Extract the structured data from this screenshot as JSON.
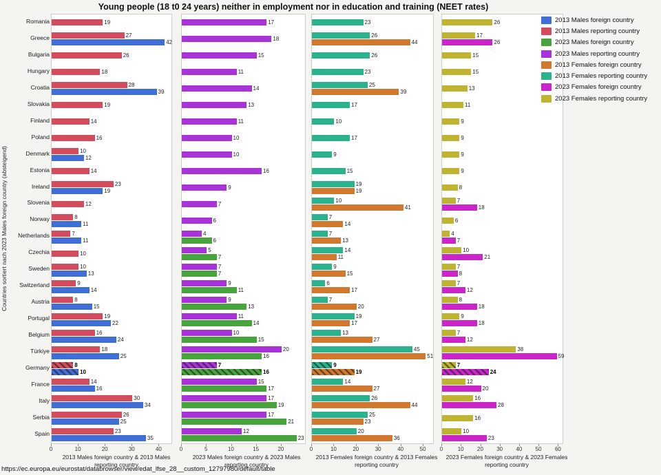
{
  "title": "Young people (18 t0 24 years) neither in employment nor in education and training (NEET rates)",
  "y_axis_title": "Countries sortiert nach 2023 Males foreign country (absteigend)",
  "source_url": "https://ec.europa.eu/eurostat/databrowser/view/edat_lfse_28__custom_12797980/default/table",
  "highlight_country": "Germany",
  "colors": {
    "males_2013_foreign": "#3e6ed6",
    "males_2013_reporting": "#d24c5e",
    "males_2023_foreign": "#47a33b",
    "males_2023_reporting": "#a833d8",
    "females_2013_foreign": "#d1782e",
    "females_2013_reporting": "#29b28c",
    "females_2023_foreign": "#cb25c9",
    "females_2023_reporting": "#c0b32f",
    "panel_background": "#ffffff",
    "page_background": "#f4f4f1"
  },
  "legend": [
    {
      "label": "2013 Males foreign country",
      "color": "#3e6ed6"
    },
    {
      "label": "2013 Males reporting country",
      "color": "#d24c5e"
    },
    {
      "label": "2023 Males foreign country",
      "color": "#47a33b"
    },
    {
      "label": "2023 Males reporting country",
      "color": "#a833d8"
    },
    {
      "label": "2013 Females foreign country",
      "color": "#d1782e"
    },
    {
      "label": "2013 Females reporting country",
      "color": "#29b28c"
    },
    {
      "label": "2023 Females foreign country",
      "color": "#cb25c9"
    },
    {
      "label": "2023 Females reporting country",
      "color": "#c0b32f"
    }
  ],
  "chart_data": {
    "type": "bar",
    "orientation": "horizontal",
    "grid": false,
    "legend_position": "top-right",
    "categories": [
      "Romania",
      "Greece",
      "Bulgaria",
      "Hungary",
      "Croatia",
      "Slovakia",
      "Finland",
      "Poland",
      "Denmark",
      "Estonia",
      "Ireland",
      "Slovenia",
      "Norway",
      "Netherlands",
      "Czechia",
      "Sweden",
      "Switzerland",
      "Austria",
      "Portugal",
      "Belgium",
      "Türkiye",
      "Germany",
      "France",
      "Italy",
      "Serbia",
      "Spain"
    ],
    "panels": [
      {
        "xlabel": "2013 Males foreign country & 2013 Males reporting country",
        "xticks": [
          0,
          10,
          20,
          30,
          40
        ],
        "xmax": 44.5,
        "series": [
          {
            "name": "2013 Males reporting country",
            "color": "#d24c5e",
            "values": [
              19,
              27,
              26,
              18,
              28,
              19,
              14,
              16,
              10,
              14,
              23,
              12,
              8,
              7,
              10,
              10,
              9,
              8,
              19,
              16,
              18,
              8,
              14,
              30,
              26,
              23
            ]
          },
          {
            "name": "2013 Males foreign country",
            "color": "#3e6ed6",
            "values": [
              null,
              42,
              null,
              null,
              39,
              null,
              null,
              null,
              12,
              null,
              19,
              null,
              11,
              11,
              null,
              13,
              14,
              15,
              22,
              24,
              25,
              10,
              16,
              34,
              25,
              35
            ]
          }
        ]
      },
      {
        "xlabel": "2023 Males foreign country & 2023 Males reporting country",
        "xticks": [
          0,
          5,
          10,
          15,
          20
        ],
        "xmax": 24.7,
        "series": [
          {
            "name": "2023 Males reporting country",
            "color": "#a833d8",
            "values": [
              17,
              18,
              15,
              11,
              14,
              13,
              11,
              10,
              10,
              16,
              9,
              7,
              6,
              4,
              5,
              7,
              9,
              9,
              11,
              10,
              20,
              7,
              15,
              17,
              17,
              12
            ]
          },
          {
            "name": "2023 Males foreign country",
            "color": "#47a33b",
            "values": [
              null,
              null,
              null,
              null,
              null,
              null,
              null,
              null,
              null,
              null,
              null,
              null,
              null,
              6,
              7,
              7,
              11,
              13,
              14,
              15,
              16,
              16,
              17,
              19,
              21,
              23
            ]
          }
        ]
      },
      {
        "xlabel": "2013 Females foreign country & 2013 Females reporting country",
        "xticks": [
          0,
          10,
          20,
          30,
          40,
          50
        ],
        "xmax": 54.3,
        "series": [
          {
            "name": "2013 Females reporting country",
            "color": "#29b28c",
            "values": [
              23,
              26,
              26,
              23,
              25,
              17,
              10,
              17,
              9,
              15,
              19,
              10,
              7,
              7,
              14,
              9,
              6,
              7,
              19,
              13,
              45,
              9,
              14,
              26,
              25,
              20
            ]
          },
          {
            "name": "2013 Females foreign country",
            "color": "#d1782e",
            "values": [
              null,
              44,
              null,
              null,
              39,
              null,
              null,
              null,
              null,
              null,
              19,
              41,
              14,
              13,
              11,
              15,
              17,
              20,
              17,
              27,
              51,
              19,
              27,
              44,
              23,
              36
            ]
          }
        ]
      },
      {
        "xlabel": "2023 Females foreign country & 2023 Females reporting country",
        "xticks": [
          0,
          10,
          20,
          30,
          40,
          50,
          60
        ],
        "xmax": 62,
        "series": [
          {
            "name": "2023 Females reporting country",
            "color": "#c0b32f",
            "values": [
              26,
              17,
              15,
              15,
              13,
              11,
              9,
              9,
              9,
              9,
              8,
              7,
              6,
              4,
              10,
              7,
              7,
              8,
              9,
              7,
              38,
              7,
              12,
              16,
              16,
              10
            ]
          },
          {
            "name": "2023 Females foreign country",
            "color": "#cb25c9",
            "values": [
              null,
              26,
              null,
              null,
              null,
              null,
              null,
              null,
              null,
              null,
              null,
              18,
              null,
              7,
              21,
              8,
              12,
              18,
              18,
              12,
              59,
              24,
              20,
              28,
              null,
              23
            ]
          }
        ]
      }
    ]
  }
}
